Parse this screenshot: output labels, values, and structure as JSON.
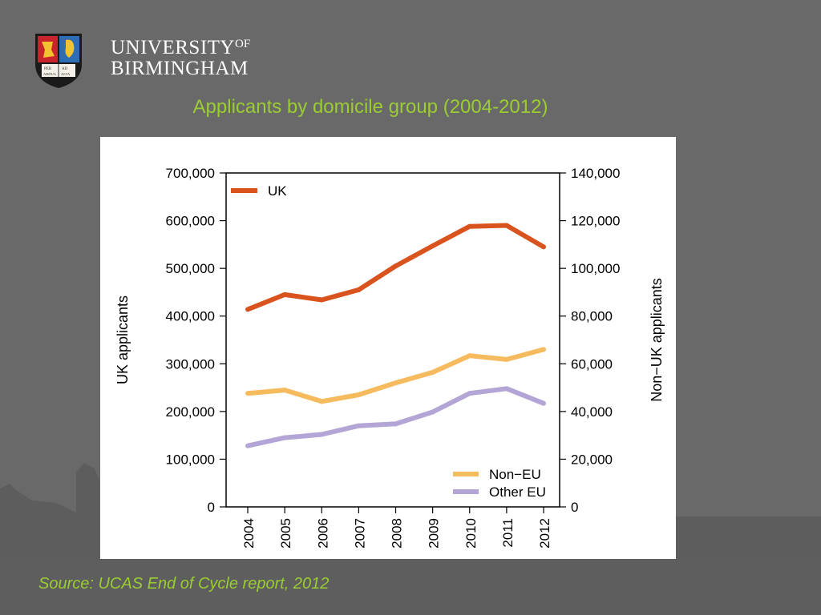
{
  "header": {
    "university_line1": "UNIVERSITY",
    "university_of": "OF",
    "university_line2": "BIRMINGHAM",
    "crest_text_top": "PER",
    "crest_text_top2": "AD",
    "crest_text_bottom": "ARDUA",
    "crest_text_bottom2": "ALTA"
  },
  "title": "Applicants by domicile group (2004-2012)",
  "source": "Source: UCAS End of Cycle report, 2012",
  "colors": {
    "title_text": "#9acd32",
    "uk": "#d9531e",
    "non_eu": "#f7bb5f",
    "other_eu": "#b3a6d6"
  },
  "chart_data": {
    "type": "line",
    "x": [
      "2004",
      "2005",
      "2006",
      "2007",
      "2008",
      "2009",
      "2010",
      "2011",
      "2012"
    ],
    "ylabel_left": "UK applicants",
    "ylabel_right": "Non−UK applicants",
    "ylim_left": [
      0,
      700000
    ],
    "ylim_right": [
      0,
      140000
    ],
    "yticks_left": [
      "0",
      "100,000",
      "200,000",
      "300,000",
      "400,000",
      "500,000",
      "600,000",
      "700,000"
    ],
    "yticks_right": [
      "0",
      "20,000",
      "40,000",
      "60,000",
      "80,000",
      "100,000",
      "120,000",
      "140,000"
    ],
    "grid": false,
    "legend": [
      {
        "name": "UK",
        "placement": "top-left"
      },
      {
        "name": "Non−EU",
        "placement": "bottom-right"
      },
      {
        "name": "Other EU",
        "placement": "bottom-right"
      }
    ],
    "series": [
      {
        "name": "UK",
        "axis": "left",
        "color": "#d9531e",
        "values": [
          414000,
          445000,
          434000,
          455000,
          505000,
          547000,
          588000,
          590000,
          545000
        ]
      },
      {
        "name": "Non−EU",
        "axis": "right",
        "color": "#f7bb5f",
        "values": [
          47600,
          49000,
          44200,
          47000,
          52000,
          56400,
          63400,
          61800,
          66000
        ]
      },
      {
        "name": "Other EU",
        "axis": "right",
        "color": "#b3a6d6",
        "values": [
          25600,
          29000,
          30400,
          34000,
          34800,
          39800,
          47600,
          49600,
          43400
        ]
      }
    ]
  }
}
